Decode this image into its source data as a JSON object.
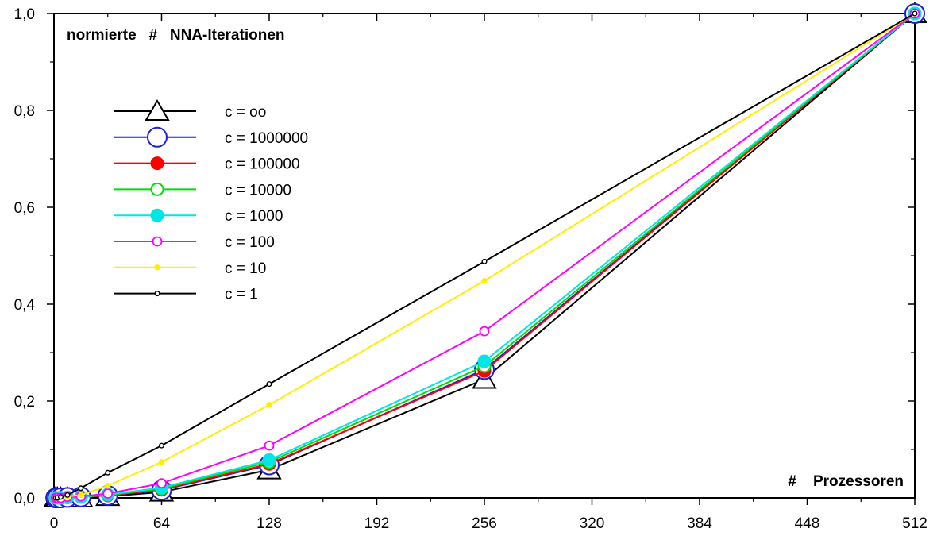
{
  "chart_data": {
    "type": "line",
    "title": "",
    "ylabel": "normierte   #   NNA-Iterationen",
    "xlabel": "#    Prozessoren",
    "xlim": [
      0,
      512
    ],
    "ylim": [
      0,
      1.0
    ],
    "xticks": [
      0,
      64,
      128,
      192,
      256,
      320,
      384,
      448,
      512
    ],
    "yticks": [
      0.0,
      0.2,
      0.4,
      0.6,
      0.8,
      1.0
    ],
    "xtick_labels": [
      "0",
      "64",
      "128",
      "192",
      "256",
      "320",
      "384",
      "448",
      "512"
    ],
    "ytick_labels": [
      "0,0",
      "0,2",
      "0,4",
      "0,6",
      "0,8",
      "1,0"
    ],
    "grid": false,
    "legend_position": "upper-left",
    "x": [
      1,
      2,
      4,
      8,
      16,
      32,
      64,
      128,
      256,
      512
    ],
    "series": [
      {
        "name": "c = oo",
        "color": "#000000",
        "marker": "triangle-open-large",
        "values": [
          0.0,
          0.0,
          0.0,
          0.0,
          0.0,
          0.003,
          0.012,
          0.058,
          0.245,
          1.0
        ]
      },
      {
        "name": "c = 1000000",
        "color": "#1f1fcf",
        "marker": "circle-open-large",
        "values": [
          0.0,
          0.0,
          0.0,
          0.001,
          0.002,
          0.005,
          0.016,
          0.068,
          0.265,
          1.0
        ]
      },
      {
        "name": "c = 100000",
        "color": "#ff0000",
        "marker": "circle-filled",
        "values": [
          0.0,
          0.0,
          0.0,
          0.001,
          0.002,
          0.005,
          0.017,
          0.07,
          0.262,
          1.0
        ]
      },
      {
        "name": "c = 10000",
        "color": "#00dd00",
        "marker": "circle-open",
        "values": [
          0.0,
          0.0,
          0.0,
          0.001,
          0.002,
          0.006,
          0.019,
          0.074,
          0.272,
          1.0
        ]
      },
      {
        "name": "c = 1000",
        "color": "#00e5e5",
        "marker": "circle-filled",
        "values": [
          0.0,
          0.0,
          0.0,
          0.001,
          0.002,
          0.007,
          0.021,
          0.078,
          0.282,
          1.0
        ]
      },
      {
        "name": "c = 100",
        "color": "#ff00ff",
        "marker": "circle-open-small",
        "values": [
          0.0,
          0.0,
          0.0,
          0.002,
          0.003,
          0.009,
          0.03,
          0.108,
          0.344,
          1.0
        ]
      },
      {
        "name": "c = 10",
        "color": "#ffee00",
        "marker": "dot-filled",
        "values": [
          0.0,
          0.0,
          0.001,
          0.003,
          0.006,
          0.025,
          0.074,
          0.192,
          0.448,
          1.0
        ]
      },
      {
        "name": "c = 1",
        "color": "#000000",
        "marker": "dot-open",
        "values": [
          0.0,
          0.0,
          0.002,
          0.006,
          0.02,
          0.052,
          0.108,
          0.235,
          0.488,
          1.0
        ]
      }
    ]
  }
}
